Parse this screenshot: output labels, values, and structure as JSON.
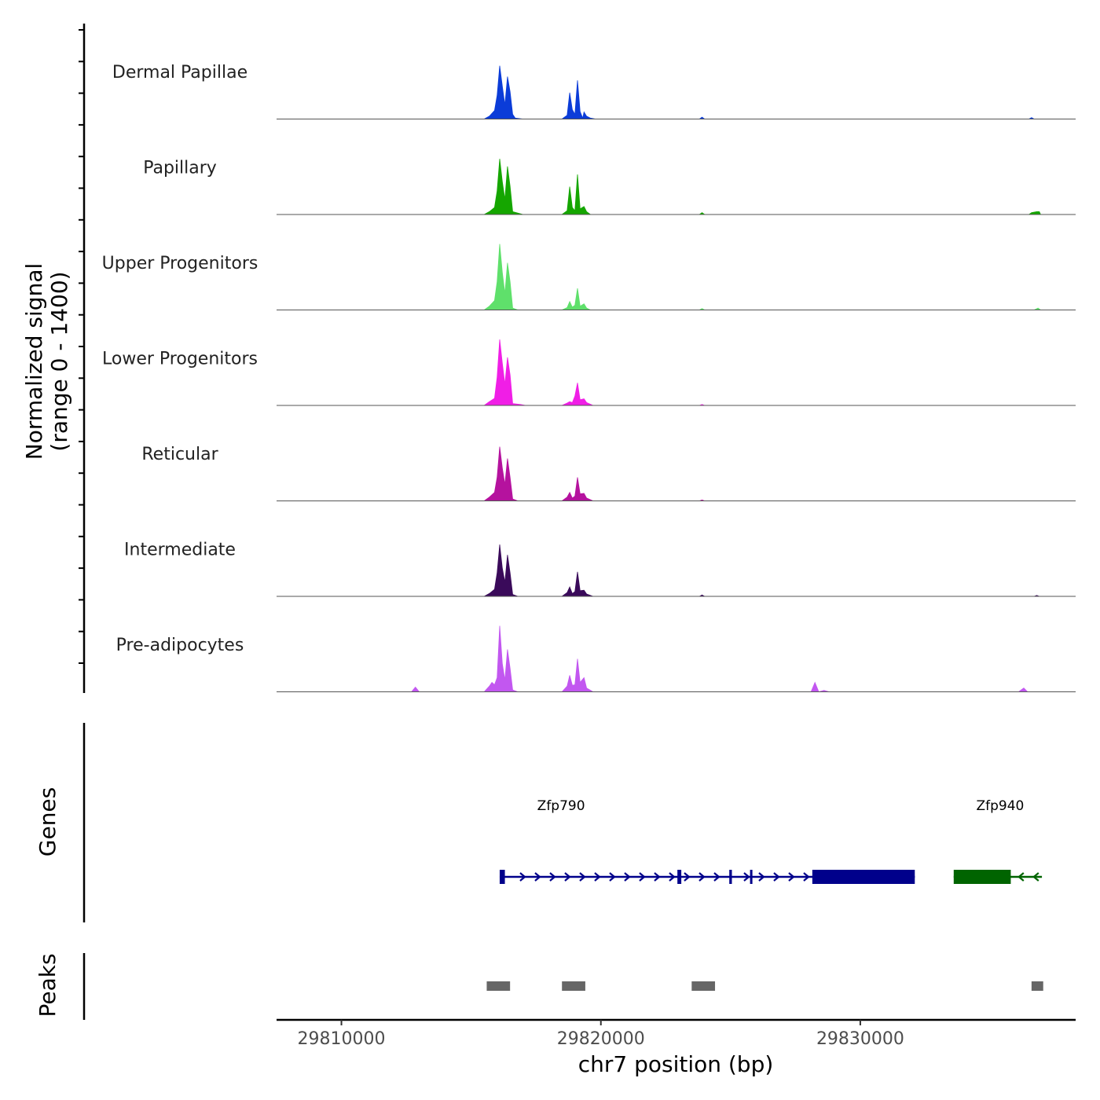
{
  "chart_data": {
    "type": "area",
    "title": "",
    "y_axis_label_line1": "Normalized signal",
    "y_axis_label_line2": "(range 0 - 1400)",
    "ylim": [
      0,
      1400
    ],
    "xlabel": "chr7 position (bp)",
    "xlim": [
      29807500,
      29838300
    ],
    "x_ticks": [
      29810000,
      29820000,
      29830000
    ],
    "x_tick_labels": [
      "29810000",
      "29820000",
      "29830000"
    ],
    "tracks": [
      {
        "name": "Dermal Papillae",
        "color": "#0b3cd8",
        "points": [
          [
            29807600,
            0
          ],
          [
            29815500,
            0
          ],
          [
            29815700,
            60
          ],
          [
            29815900,
            180
          ],
          [
            29816000,
            500
          ],
          [
            29816100,
            1130
          ],
          [
            29816200,
            700
          ],
          [
            29816300,
            300
          ],
          [
            29816400,
            900
          ],
          [
            29816500,
            580
          ],
          [
            29816600,
            100
          ],
          [
            29816700,
            20
          ],
          [
            29817000,
            0
          ],
          [
            29818500,
            0
          ],
          [
            29818700,
            80
          ],
          [
            29818800,
            560
          ],
          [
            29818900,
            200
          ],
          [
            29819000,
            100
          ],
          [
            29819100,
            820
          ],
          [
            29819200,
            160
          ],
          [
            29819300,
            20
          ],
          [
            29819350,
            150
          ],
          [
            29819450,
            60
          ],
          [
            29819600,
            20
          ],
          [
            29819800,
            0
          ],
          [
            29823800,
            0
          ],
          [
            29823900,
            40
          ],
          [
            29824000,
            0
          ],
          [
            29836500,
            0
          ],
          [
            29836600,
            30
          ],
          [
            29836700,
            0
          ],
          [
            29838000,
            0
          ]
        ]
      },
      {
        "name": "Papillary",
        "color": "#15a600",
        "points": [
          [
            29807600,
            0
          ],
          [
            29815500,
            0
          ],
          [
            29815700,
            60
          ],
          [
            29815900,
            150
          ],
          [
            29816000,
            500
          ],
          [
            29816100,
            1180
          ],
          [
            29816200,
            700
          ],
          [
            29816300,
            320
          ],
          [
            29816400,
            1020
          ],
          [
            29816500,
            600
          ],
          [
            29816600,
            60
          ],
          [
            29817000,
            0
          ],
          [
            29818500,
            0
          ],
          [
            29818700,
            80
          ],
          [
            29818800,
            590
          ],
          [
            29818900,
            150
          ],
          [
            29819000,
            80
          ],
          [
            29819100,
            850
          ],
          [
            29819200,
            120
          ],
          [
            29819350,
            170
          ],
          [
            29819450,
            60
          ],
          [
            29819600,
            0
          ],
          [
            29823800,
            0
          ],
          [
            29823900,
            40
          ],
          [
            29824000,
            0
          ],
          [
            29833000,
            0
          ],
          [
            29836500,
            0
          ],
          [
            29836600,
            40
          ],
          [
            29836800,
            60
          ],
          [
            29836900,
            60
          ],
          [
            29836950,
            0
          ],
          [
            29838000,
            0
          ]
        ]
      },
      {
        "name": "Upper Progenitors",
        "color": "#5fe06b",
        "points": [
          [
            29807600,
            0
          ],
          [
            29815500,
            0
          ],
          [
            29815700,
            80
          ],
          [
            29815900,
            200
          ],
          [
            29816000,
            600
          ],
          [
            29816100,
            1400
          ],
          [
            29816200,
            800
          ],
          [
            29816300,
            350
          ],
          [
            29816400,
            1000
          ],
          [
            29816500,
            600
          ],
          [
            29816600,
            40
          ],
          [
            29816800,
            0
          ],
          [
            29818500,
            0
          ],
          [
            29818700,
            50
          ],
          [
            29818800,
            180
          ],
          [
            29818900,
            60
          ],
          [
            29819000,
            100
          ],
          [
            29819100,
            460
          ],
          [
            29819200,
            80
          ],
          [
            29819350,
            130
          ],
          [
            29819450,
            40
          ],
          [
            29819600,
            0
          ],
          [
            29823800,
            0
          ],
          [
            29823900,
            30
          ],
          [
            29824000,
            0
          ],
          [
            29836700,
            0
          ],
          [
            29836850,
            40
          ],
          [
            29836950,
            0
          ],
          [
            29838000,
            0
          ]
        ]
      },
      {
        "name": "Lower Progenitors",
        "color": "#f01ee6",
        "points": [
          [
            29807600,
            0
          ],
          [
            29815500,
            0
          ],
          [
            29815700,
            80
          ],
          [
            29815900,
            150
          ],
          [
            29816000,
            600
          ],
          [
            29816100,
            1400
          ],
          [
            29816200,
            900
          ],
          [
            29816300,
            450
          ],
          [
            29816400,
            1020
          ],
          [
            29816500,
            650
          ],
          [
            29816600,
            40
          ],
          [
            29816900,
            20
          ],
          [
            29817100,
            0
          ],
          [
            29818500,
            0
          ],
          [
            29818700,
            50
          ],
          [
            29818800,
            80
          ],
          [
            29818900,
            60
          ],
          [
            29819000,
            200
          ],
          [
            29819100,
            480
          ],
          [
            29819200,
            120
          ],
          [
            29819350,
            140
          ],
          [
            29819450,
            60
          ],
          [
            29819700,
            0
          ],
          [
            29823800,
            0
          ],
          [
            29823900,
            20
          ],
          [
            29824000,
            0
          ],
          [
            29838000,
            0
          ]
        ]
      },
      {
        "name": "Reticular",
        "color": "#b5129e",
        "points": [
          [
            29807600,
            0
          ],
          [
            29815500,
            0
          ],
          [
            29815700,
            80
          ],
          [
            29815900,
            180
          ],
          [
            29816000,
            500
          ],
          [
            29816100,
            1150
          ],
          [
            29816200,
            700
          ],
          [
            29816300,
            350
          ],
          [
            29816400,
            900
          ],
          [
            29816500,
            500
          ],
          [
            29816600,
            40
          ],
          [
            29816800,
            0
          ],
          [
            29818500,
            0
          ],
          [
            29818700,
            80
          ],
          [
            29818800,
            180
          ],
          [
            29818900,
            60
          ],
          [
            29819000,
            100
          ],
          [
            29819100,
            500
          ],
          [
            29819200,
            150
          ],
          [
            29819350,
            160
          ],
          [
            29819450,
            60
          ],
          [
            29819700,
            0
          ],
          [
            29823800,
            0
          ],
          [
            29823900,
            20
          ],
          [
            29824000,
            0
          ],
          [
            29838000,
            0
          ]
        ]
      },
      {
        "name": "Intermediate",
        "color": "#3a0a5a",
        "points": [
          [
            29807600,
            0
          ],
          [
            29815500,
            0
          ],
          [
            29815700,
            60
          ],
          [
            29815900,
            150
          ],
          [
            29816000,
            500
          ],
          [
            29816100,
            1100
          ],
          [
            29816200,
            600
          ],
          [
            29816300,
            300
          ],
          [
            29816400,
            880
          ],
          [
            29816500,
            500
          ],
          [
            29816600,
            40
          ],
          [
            29816800,
            0
          ],
          [
            29818500,
            0
          ],
          [
            29818700,
            80
          ],
          [
            29818800,
            200
          ],
          [
            29818900,
            60
          ],
          [
            29819000,
            100
          ],
          [
            29819100,
            520
          ],
          [
            29819200,
            120
          ],
          [
            29819350,
            130
          ],
          [
            29819450,
            50
          ],
          [
            29819700,
            0
          ],
          [
            29823800,
            0
          ],
          [
            29823900,
            30
          ],
          [
            29824000,
            0
          ],
          [
            29836700,
            0
          ],
          [
            29836800,
            20
          ],
          [
            29836900,
            0
          ],
          [
            29838000,
            0
          ]
        ]
      },
      {
        "name": "Pre-adipocytes",
        "color": "#c257f0",
        "points": [
          [
            29807600,
            0
          ],
          [
            29812700,
            0
          ],
          [
            29812850,
            100
          ],
          [
            29813000,
            0
          ],
          [
            29815500,
            0
          ],
          [
            29815700,
            120
          ],
          [
            29815800,
            200
          ],
          [
            29815900,
            150
          ],
          [
            29816000,
            300
          ],
          [
            29816100,
            1400
          ],
          [
            29816200,
            600
          ],
          [
            29816300,
            250
          ],
          [
            29816400,
            900
          ],
          [
            29816500,
            500
          ],
          [
            29816600,
            40
          ],
          [
            29816800,
            0
          ],
          [
            29818500,
            0
          ],
          [
            29818700,
            120
          ],
          [
            29818800,
            350
          ],
          [
            29818900,
            140
          ],
          [
            29819000,
            150
          ],
          [
            29819100,
            700
          ],
          [
            29819200,
            200
          ],
          [
            29819350,
            300
          ],
          [
            29819450,
            80
          ],
          [
            29819700,
            0
          ],
          [
            29828100,
            0
          ],
          [
            29828250,
            200
          ],
          [
            29828400,
            0
          ],
          [
            29828600,
            30
          ],
          [
            29828800,
            0
          ],
          [
            29836100,
            0
          ],
          [
            29836300,
            80
          ],
          [
            29836450,
            0
          ],
          [
            29838000,
            0
          ]
        ]
      }
    ],
    "genes_track_label": "Genes",
    "genes": [
      {
        "name": "Zfp790",
        "color": "#00008b",
        "strand": "+",
        "start": 29816100,
        "end": 29832100,
        "exons": [
          [
            29816100,
            29816300
          ],
          [
            29822950,
            29823100
          ],
          [
            29824950,
            29825050
          ],
          [
            29825750,
            29825800
          ],
          [
            29828150,
            29832100
          ]
        ]
      },
      {
        "name": "Zfp940",
        "color": "#006400",
        "strand": "-",
        "start": 29833600,
        "end": 29837000,
        "exons": [
          [
            29833600,
            29835800
          ]
        ]
      }
    ],
    "peaks_track_label": "Peaks",
    "peaks": [
      [
        29815600,
        29816500
      ],
      [
        29818500,
        29819400
      ],
      [
        29823500,
        29824400
      ],
      [
        29836600,
        29837050
      ]
    ]
  }
}
